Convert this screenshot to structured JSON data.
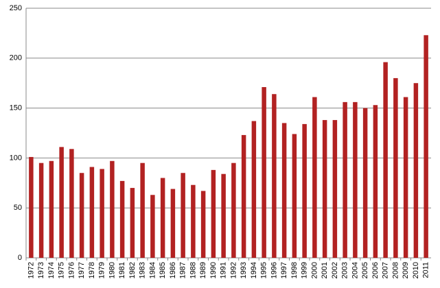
{
  "chart_data": {
    "type": "bar",
    "categories": [
      "1972",
      "1973",
      "1974",
      "1975",
      "1976",
      "1977",
      "1978",
      "1979",
      "1980",
      "1981",
      "1982",
      "1983",
      "1984",
      "1985",
      "1986",
      "1987",
      "1988",
      "1989",
      "1990",
      "1991",
      "1992",
      "1993",
      "1994",
      "1995",
      "1996",
      "1997",
      "1998",
      "1999",
      "2000",
      "2001",
      "2002",
      "2003",
      "2004",
      "2005",
      "2006",
      "2007",
      "2008",
      "2009",
      "2010",
      "2011"
    ],
    "values": [
      101,
      95,
      97,
      111,
      109,
      85,
      91,
      89,
      97,
      77,
      70,
      95,
      63,
      80,
      69,
      85,
      73,
      67,
      88,
      84,
      95,
      123,
      137,
      171,
      164,
      135,
      124,
      134,
      161,
      138,
      138,
      156,
      156,
      150,
      153,
      196,
      180,
      161,
      175,
      223
    ],
    "color": "#b22222",
    "ylim": [
      0,
      250
    ],
    "yticks": [
      0,
      50,
      100,
      150,
      200,
      250
    ],
    "grid": true
  }
}
